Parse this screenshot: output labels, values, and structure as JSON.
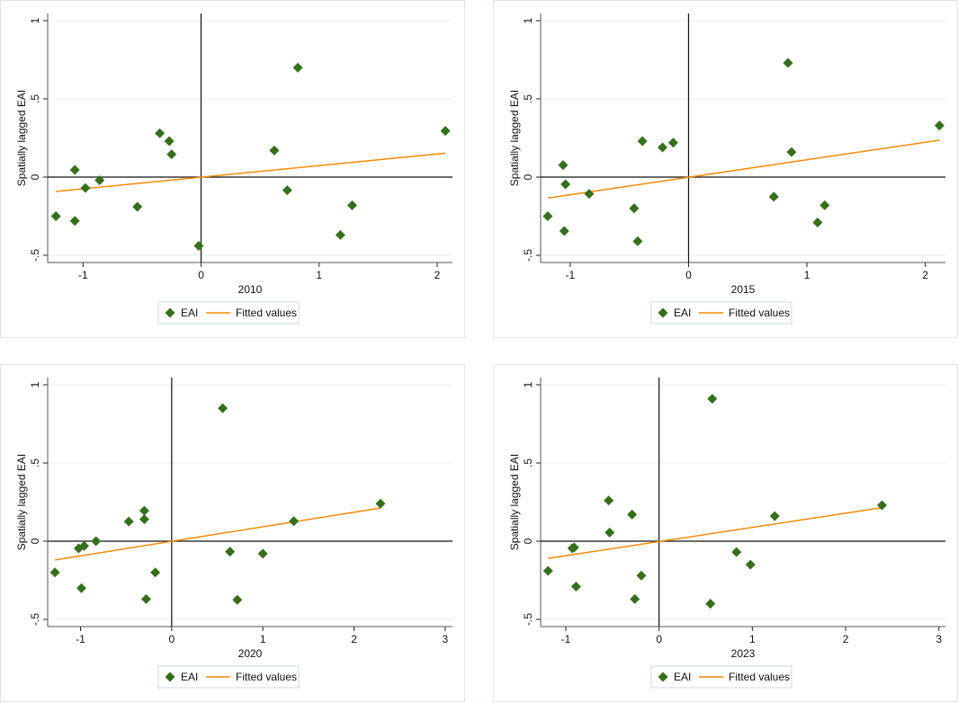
{
  "colors": {
    "marker": "#356f1c",
    "fit": "#f58a07",
    "axis": "#222222",
    "grid": "#e4eef0"
  },
  "chart_data": [
    {
      "type": "scatter",
      "xlabel": "2010",
      "ylabel": "Spatially lagged EAI",
      "xlim": [
        -1.3,
        2.13
      ],
      "ylim": [
        -0.546,
        1.046
      ],
      "xticks": [
        -1,
        0,
        1,
        2
      ],
      "xtick_labels": [
        "-1",
        "0",
        "1",
        "2"
      ],
      "yticks": [
        -0.5,
        0,
        0.5,
        1
      ],
      "ytick_labels": [
        "-.5",
        "0",
        ".5",
        "1"
      ],
      "legend": [
        "EAI",
        "Fitted values"
      ],
      "legend_position": "bottom",
      "points": [
        [
          -1.23,
          -0.25
        ],
        [
          -1.07,
          0.046
        ],
        [
          -1.07,
          -0.28
        ],
        [
          -0.98,
          -0.07
        ],
        [
          -0.86,
          -0.02
        ],
        [
          -0.54,
          -0.19
        ],
        [
          -0.35,
          0.28
        ],
        [
          -0.27,
          0.23
        ],
        [
          -0.25,
          0.146
        ],
        [
          -0.02,
          -0.44
        ],
        [
          0.62,
          0.17
        ],
        [
          0.73,
          -0.084
        ],
        [
          0.82,
          0.7
        ],
        [
          1.18,
          -0.37
        ],
        [
          1.28,
          -0.18
        ],
        [
          2.07,
          0.295
        ]
      ],
      "fit": [
        [
          -1.23,
          -0.092
        ],
        [
          2.07,
          0.153
        ]
      ]
    },
    {
      "type": "scatter",
      "xlabel": "2015",
      "ylabel": "Spatially lagged EAI",
      "xlim": [
        -1.25,
        2.17
      ],
      "ylim": [
        -0.546,
        1.046
      ],
      "xticks": [
        -1,
        0,
        1,
        2
      ],
      "xtick_labels": [
        "-1",
        "0",
        "1",
        "2"
      ],
      "yticks": [
        -0.5,
        0,
        0.5,
        1
      ],
      "ytick_labels": [
        "-.5",
        "0",
        ".5",
        "1"
      ],
      "legend": [
        "EAI",
        "Fitted values"
      ],
      "legend_position": "bottom",
      "points": [
        [
          -1.19,
          -0.25
        ],
        [
          -1.06,
          0.077
        ],
        [
          -1.04,
          -0.046
        ],
        [
          -1.05,
          -0.345
        ],
        [
          -0.84,
          -0.107
        ],
        [
          -0.46,
          -0.2
        ],
        [
          -0.43,
          -0.41
        ],
        [
          -0.39,
          0.23
        ],
        [
          -0.22,
          0.19
        ],
        [
          -0.13,
          0.22
        ],
        [
          0.72,
          -0.126
        ],
        [
          0.84,
          0.73
        ],
        [
          0.87,
          0.16
        ],
        [
          1.09,
          -0.29
        ],
        [
          1.15,
          -0.18
        ],
        [
          2.12,
          0.33
        ]
      ],
      "fit": [
        [
          -1.19,
          -0.134
        ],
        [
          2.12,
          0.236
        ]
      ]
    },
    {
      "type": "scatter",
      "xlabel": "2020",
      "ylabel": "Spatially lagged EAI",
      "xlim": [
        -1.36,
        3.08
      ],
      "ylim": [
        -0.546,
        1.046
      ],
      "xticks": [
        -1,
        0,
        1,
        2,
        3
      ],
      "xtick_labels": [
        "-1",
        "0",
        "1",
        "2",
        "3"
      ],
      "yticks": [
        -0.5,
        0,
        0.5,
        1
      ],
      "ytick_labels": [
        "-.5",
        "0",
        ".5",
        "1"
      ],
      "legend": [
        "EAI",
        "Fitted values"
      ],
      "legend_position": "bottom",
      "points": [
        [
          -1.28,
          -0.2
        ],
        [
          -0.99,
          -0.3
        ],
        [
          -1.02,
          -0.046
        ],
        [
          -0.96,
          -0.03
        ],
        [
          -0.83,
          0.0
        ],
        [
          -0.47,
          0.126
        ],
        [
          -0.3,
          0.195
        ],
        [
          -0.3,
          0.14
        ],
        [
          -0.28,
          -0.37
        ],
        [
          -0.18,
          -0.2
        ],
        [
          0.56,
          0.85
        ],
        [
          0.64,
          -0.067
        ],
        [
          0.72,
          -0.375
        ],
        [
          1.0,
          -0.08
        ],
        [
          1.34,
          0.128
        ],
        [
          2.29,
          0.24
        ]
      ],
      "fit": [
        [
          -1.28,
          -0.12
        ],
        [
          2.29,
          0.212
        ]
      ]
    },
    {
      "type": "scatter",
      "xlabel": "2023",
      "ylabel": "Spatially lagged EAI",
      "xlim": [
        -1.27,
        3.07
      ],
      "ylim": [
        -0.546,
        1.046
      ],
      "xticks": [
        -1,
        0,
        1,
        2,
        3
      ],
      "xtick_labels": [
        "-1",
        "0",
        "1",
        "2",
        "3"
      ],
      "yticks": [
        -0.5,
        0,
        0.5,
        1
      ],
      "ytick_labels": [
        "-.5",
        "0",
        ".5",
        "1"
      ],
      "legend": [
        "EAI",
        "Fitted values"
      ],
      "legend_position": "bottom",
      "points": [
        [
          -1.19,
          -0.19
        ],
        [
          -0.91,
          -0.04
        ],
        [
          -0.93,
          -0.045
        ],
        [
          -0.89,
          -0.29
        ],
        [
          -0.54,
          0.26
        ],
        [
          -0.53,
          0.055
        ],
        [
          -0.29,
          0.17
        ],
        [
          -0.19,
          -0.22
        ],
        [
          -0.26,
          -0.37
        ],
        [
          0.57,
          0.91
        ],
        [
          0.55,
          -0.4
        ],
        [
          0.83,
          -0.07
        ],
        [
          0.98,
          -0.15
        ],
        [
          1.24,
          0.16
        ],
        [
          2.39,
          0.23
        ]
      ],
      "fit": [
        [
          -1.19,
          -0.11
        ],
        [
          2.39,
          0.214
        ]
      ]
    }
  ]
}
